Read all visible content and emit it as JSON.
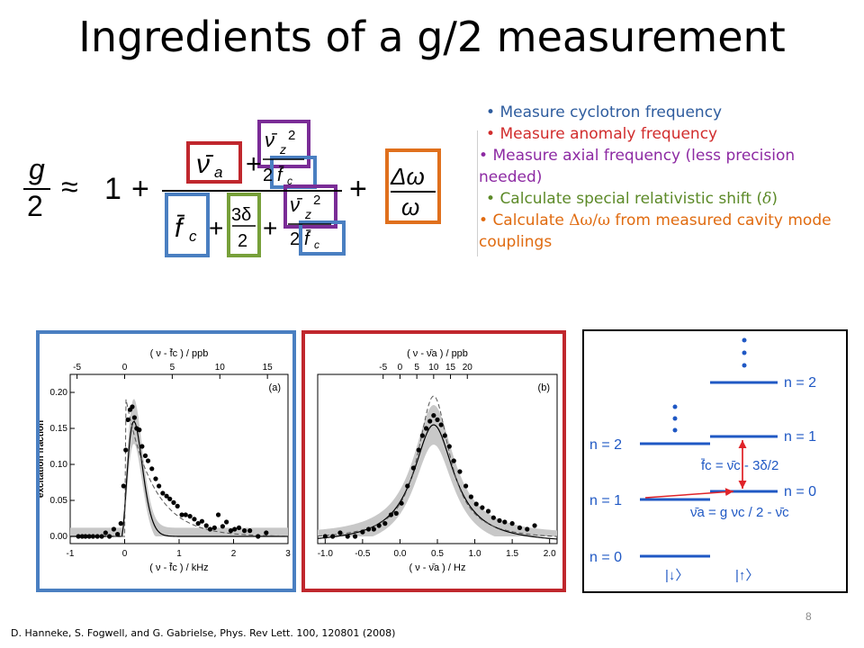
{
  "slide": {
    "title": "Ingredients of a g/2 measurement",
    "page_number": "8",
    "citation": "D. Hanneke, S. Fogwell, and G. Gabrielse, Phys. Rev Lett. 100, 120801 (2008)"
  },
  "colors": {
    "blue_text": "#2e5c9e",
    "red_text": "#d12d2d",
    "purple_text": "#8d2aa3",
    "green_text": "#5c8a28",
    "orange_text": "#e06b10",
    "blue_box": "#4a7fc1",
    "red_box": "#c0272d",
    "purple_box": "#7a2c96",
    "green_box": "#77a03a",
    "orange_box": "#e0701d",
    "curve_band": "#c8c8c8"
  },
  "bullets": [
    {
      "text": "Measure cyclotron frequency",
      "color": "#2e5c9e"
    },
    {
      "text": "Measure anomaly frequency",
      "color": "#d12d2d"
    },
    {
      "text": "Measure axial frequency (less precision needed)",
      "color": "#8d2aa3"
    },
    {
      "text_before": "Calculate special relativistic shift (",
      "symbol": "δ",
      "text_after": ")",
      "color": "#5c8a28"
    },
    {
      "text_before": "Calculate ",
      "symbol": "Δω/ω",
      "text_after": " from measured cavity mode couplings",
      "color": "#e06b10"
    }
  ],
  "formula": {
    "lhs_num": "g",
    "lhs_den": "2",
    "approx": "≈",
    "one": "1",
    "plus": "+",
    "nu_a": "ν̄",
    "nu_a_sub": "a",
    "nu_z": "ν̄",
    "nu_z_sub": "z",
    "nu_z_sup": "2",
    "two_fc": "2",
    "f_c": "f̄",
    "f_c_sub": "c",
    "three_delta": "3δ",
    "two": "2",
    "delta_omega": "Δω",
    "omega": "ω"
  },
  "chart_data": [
    {
      "type": "scatter",
      "label": "(a)",
      "xlabel_top": "( ν - f̄c ) / ppb",
      "xlabel_bottom": "( ν - f̄c ) / kHz",
      "ylabel": "excitation fraction",
      "x_ticks_bottom": [
        "-1",
        "0",
        "1",
        "2",
        "3"
      ],
      "x_ticks_top": [
        "-5",
        "0",
        "5",
        "10",
        "15",
        "20"
      ],
      "y_ticks": [
        "0.00",
        "0.05",
        "0.10",
        "0.15",
        "0.20"
      ],
      "xlim": [
        -1,
        3
      ],
      "ylim": [
        -0.01,
        0.225
      ],
      "points": [
        [
          -0.85,
          0.0
        ],
        [
          -0.78,
          0.0
        ],
        [
          -0.72,
          0.0
        ],
        [
          -0.65,
          0.0
        ],
        [
          -0.58,
          0.0
        ],
        [
          -0.5,
          0.0
        ],
        [
          -0.42,
          0.0
        ],
        [
          -0.35,
          0.005
        ],
        [
          -0.28,
          0.0
        ],
        [
          -0.2,
          0.01
        ],
        [
          -0.13,
          0.003
        ],
        [
          -0.07,
          0.018
        ],
        [
          -0.02,
          0.07
        ],
        [
          0.02,
          0.12
        ],
        [
          0.06,
          0.162
        ],
        [
          0.1,
          0.176
        ],
        [
          0.14,
          0.18
        ],
        [
          0.18,
          0.165
        ],
        [
          0.22,
          0.15
        ],
        [
          0.27,
          0.148
        ],
        [
          0.32,
          0.125
        ],
        [
          0.38,
          0.112
        ],
        [
          0.43,
          0.105
        ],
        [
          0.5,
          0.094
        ],
        [
          0.57,
          0.08
        ],
        [
          0.63,
          0.07
        ],
        [
          0.7,
          0.06
        ],
        [
          0.77,
          0.056
        ],
        [
          0.83,
          0.052
        ],
        [
          0.9,
          0.047
        ],
        [
          0.97,
          0.042
        ],
        [
          1.05,
          0.03
        ],
        [
          1.12,
          0.03
        ],
        [
          1.2,
          0.028
        ],
        [
          1.28,
          0.024
        ],
        [
          1.35,
          0.018
        ],
        [
          1.42,
          0.021
        ],
        [
          1.5,
          0.015
        ],
        [
          1.57,
          0.01
        ],
        [
          1.65,
          0.012
        ],
        [
          1.72,
          0.03
        ],
        [
          1.8,
          0.014
        ],
        [
          1.87,
          0.02
        ],
        [
          1.95,
          0.008
        ],
        [
          2.02,
          0.01
        ],
        [
          2.1,
          0.012
        ],
        [
          2.2,
          0.008
        ],
        [
          2.3,
          0.008
        ],
        [
          2.45,
          0.0
        ],
        [
          2.6,
          0.005
        ]
      ]
    },
    {
      "type": "scatter",
      "label": "(b)",
      "xlabel_top": "( ν - ν̄a ) / ppb",
      "xlabel_bottom": "( ν - ν̄a ) / Hz",
      "ylabel": "",
      "x_ticks_bottom": [
        "-1.0",
        "-0.5",
        "0.0",
        "0.5",
        "1.0",
        "1.5",
        "2.0"
      ],
      "x_ticks_top": [
        "-5",
        "0",
        "5",
        "10",
        "15",
        "20"
      ],
      "xlim": [
        -1.1,
        2.1
      ],
      "ylim": [
        -0.01,
        0.225
      ],
      "points": [
        [
          -1.0,
          0.0
        ],
        [
          -0.9,
          0.0
        ],
        [
          -0.8,
          0.005
        ],
        [
          -0.7,
          0.0
        ],
        [
          -0.6,
          0.0
        ],
        [
          -0.5,
          0.006
        ],
        [
          -0.42,
          0.01
        ],
        [
          -0.35,
          0.01
        ],
        [
          -0.28,
          0.015
        ],
        [
          -0.2,
          0.018
        ],
        [
          -0.12,
          0.03
        ],
        [
          -0.05,
          0.032
        ],
        [
          0.02,
          0.046
        ],
        [
          0.1,
          0.07
        ],
        [
          0.18,
          0.095
        ],
        [
          0.25,
          0.12
        ],
        [
          0.3,
          0.14
        ],
        [
          0.35,
          0.15
        ],
        [
          0.4,
          0.16
        ],
        [
          0.45,
          0.168
        ],
        [
          0.5,
          0.162
        ],
        [
          0.55,
          0.155
        ],
        [
          0.6,
          0.14
        ],
        [
          0.66,
          0.125
        ],
        [
          0.72,
          0.105
        ],
        [
          0.8,
          0.09
        ],
        [
          0.88,
          0.07
        ],
        [
          0.95,
          0.055
        ],
        [
          1.02,
          0.045
        ],
        [
          1.1,
          0.04
        ],
        [
          1.18,
          0.035
        ],
        [
          1.25,
          0.026
        ],
        [
          1.33,
          0.022
        ],
        [
          1.4,
          0.02
        ],
        [
          1.5,
          0.018
        ],
        [
          1.6,
          0.012
        ],
        [
          1.7,
          0.01
        ],
        [
          1.8,
          0.015
        ]
      ]
    }
  ],
  "levels": {
    "left": [
      {
        "label": "n = 2"
      },
      {
        "label": "n = 1"
      },
      {
        "label": "n = 0"
      }
    ],
    "right": [
      {
        "label": "n = 2"
      },
      {
        "label": "n = 1"
      },
      {
        "label": "n = 0"
      }
    ],
    "eq_fc": "f̄c = ν̄c - 3δ/2",
    "eq_nua": "ν̄a =  g νc / 2 - ν̄c",
    "spin_down": "|↓〉",
    "spin_up": "|↑〉"
  }
}
